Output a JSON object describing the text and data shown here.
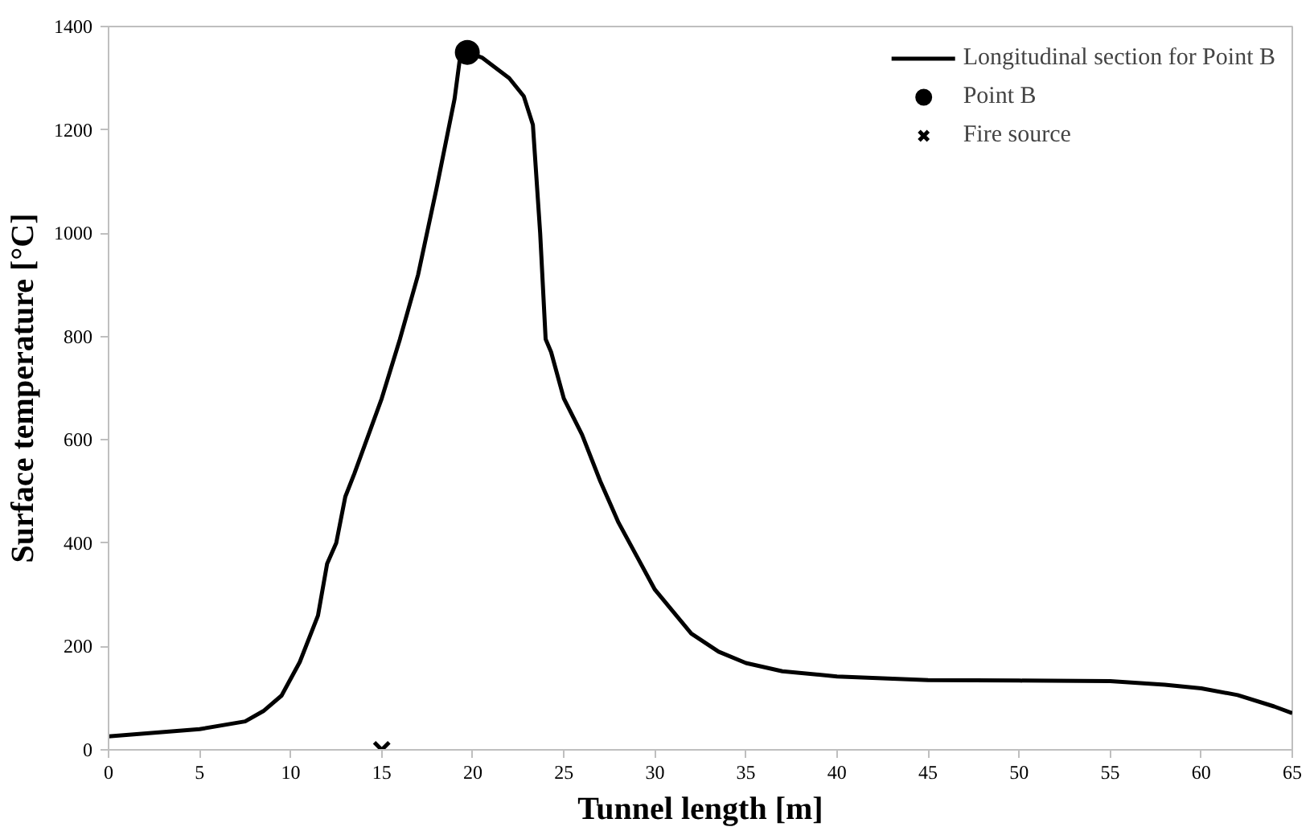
{
  "chart_data": {
    "type": "line",
    "xlabel": "Tunnel length [m]",
    "ylabel": "Surface temperature [°C]",
    "xlim": [
      0,
      65
    ],
    "xticks": [
      0,
      5,
      10,
      15,
      20,
      25,
      30,
      35,
      40,
      45,
      50,
      55,
      60,
      65
    ],
    "ylim": [
      0,
      1400
    ],
    "yticks": [
      0,
      200,
      400,
      600,
      800,
      1000,
      1200,
      1400
    ],
    "grid": false,
    "legend": "top right",
    "series": [
      {
        "name": "Longitudinal section for Point B",
        "color": "#000000",
        "marker": "none",
        "line_style": "solid",
        "x": [
          0,
          5,
          7.5,
          8.5,
          9.5,
          10.5,
          11.5,
          12,
          12.5,
          13,
          13.5,
          15,
          16,
          17,
          18,
          19,
          19.3,
          19.7,
          20.5,
          22,
          22.8,
          23.3,
          23.7,
          24,
          24.3,
          25,
          26,
          27,
          28,
          29,
          30,
          32,
          33.5,
          35,
          37,
          40,
          45,
          50,
          55,
          58,
          60,
          62,
          64,
          65
        ],
        "values": [
          26,
          40,
          55,
          75,
          105,
          170,
          260,
          360,
          400,
          490,
          535,
          680,
          795,
          920,
          1085,
          1260,
          1340,
          1350,
          1340,
          1300,
          1265,
          1210,
          1000,
          795,
          770,
          680,
          610,
          520,
          440,
          375,
          310,
          225,
          190,
          168,
          152,
          142,
          135,
          134,
          133,
          126,
          119,
          106,
          84,
          71
        ]
      },
      {
        "name": "Point B",
        "type": "scatter",
        "color": "#000000",
        "marker": "circle",
        "x": [
          19.7
        ],
        "values": [
          1350
        ]
      },
      {
        "name": "Fire source",
        "type": "scatter",
        "color": "#000000",
        "marker": "cross",
        "x": [
          15
        ],
        "values": [
          0
        ]
      }
    ]
  }
}
